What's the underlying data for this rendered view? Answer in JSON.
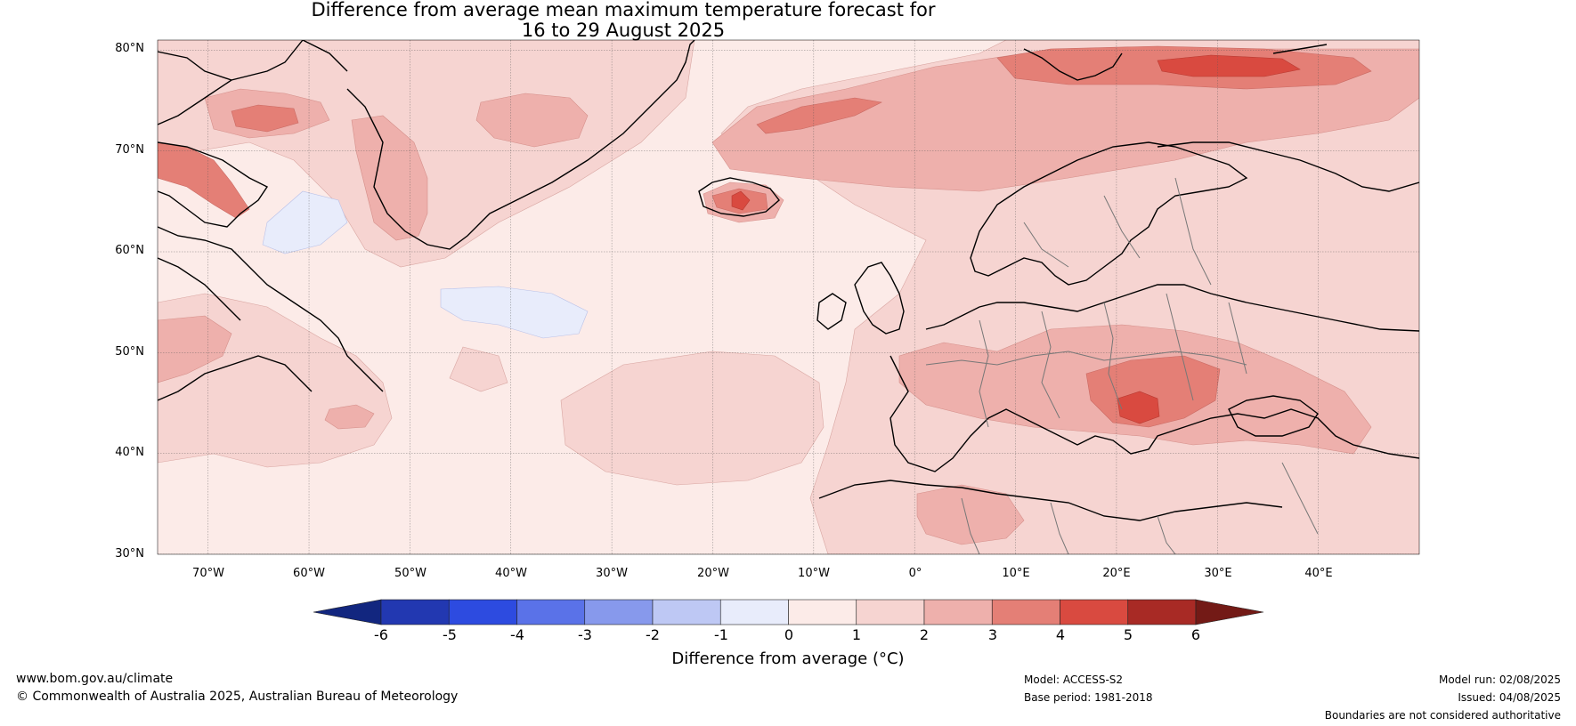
{
  "title": {
    "line1": "Difference from average mean maximum temperature forecast for",
    "line2": "16 to 29 August 2025"
  },
  "map": {
    "lat_labels": [
      "80°N",
      "70°N",
      "60°N",
      "50°N",
      "40°N",
      "30°N"
    ],
    "lon_labels": [
      "70°W",
      "60°W",
      "50°W",
      "40°W",
      "30°W",
      "20°W",
      "10°W",
      "0°",
      "10°E",
      "20°E",
      "30°E",
      "40°E"
    ],
    "extent": {
      "lon_min": -75,
      "lon_max": 50,
      "lat_min": 30,
      "lat_max": 81
    },
    "colors": {
      "anom_0_1": "#fcebe8",
      "anom_1_2": "#f6d4d1",
      "anom_2_3": "#eeb0ac",
      "anom_3_4": "#e47f76",
      "anom_4_5": "#d94a40",
      "anom_neg_1_0": "#e8ecfb",
      "coastline": "#000000",
      "borders": "#777777"
    },
    "hotspots": [
      {
        "region": "Iceland",
        "anomaly": "4-5"
      },
      {
        "region": "Svalbard / Barents",
        "anomaly": "4-5"
      },
      {
        "region": "Balkans",
        "anomaly": "4-5"
      }
    ]
  },
  "colorbar": {
    "ticks": [
      "-6",
      "-5",
      "-4",
      "-3",
      "-2",
      "-1",
      "0",
      "1",
      "2",
      "3",
      "4",
      "5",
      "6"
    ],
    "colors": [
      "#12267f",
      "#2238b1",
      "#2d4be0",
      "#5a72e8",
      "#8799ec",
      "#bec8f4",
      "#e8ecfb",
      "#fcebe8",
      "#f6d4d1",
      "#eeb0ac",
      "#e47f76",
      "#d94a40",
      "#a82a25",
      "#731a16"
    ],
    "label": "Difference from average (°C)"
  },
  "footer": {
    "website": "www.bom.gov.au/climate",
    "copyright": "© Commonwealth of Australia 2025, Australian Bureau of Meteorology",
    "model": "Model: ACCESS-S2",
    "base_period": "Base period: 1981-2018",
    "model_run": "Model run: 02/08/2025",
    "issued": "Issued: 04/08/2025",
    "disclaimer": "Boundaries are not considered authoritative"
  }
}
